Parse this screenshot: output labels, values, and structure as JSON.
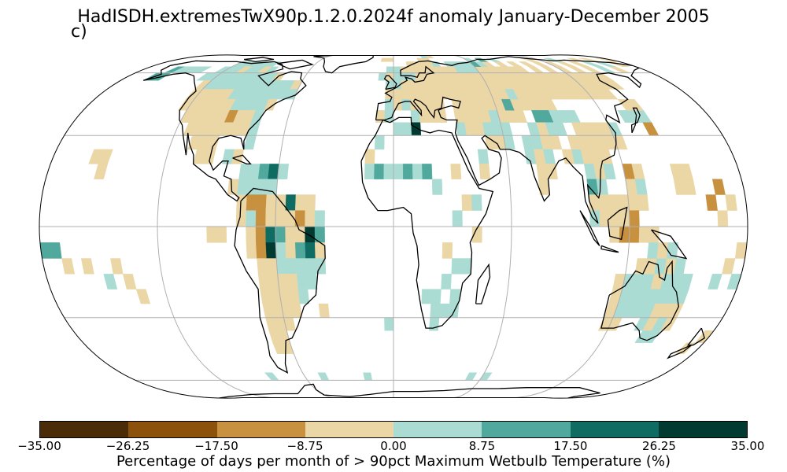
{
  "title": "HadISDH.extremesTwX90p.1.2.0.2024f anomaly January-December 2005",
  "panel_label": "c)",
  "projection": "Robinson",
  "colors": {
    "ocean": "#ffffff",
    "coastline": "#000000",
    "gridline": "#b0b0b0",
    "outline": "#000000"
  },
  "colorbar": {
    "label": "Percentage of days per month of > 90pct Maximum Wetbulb Temperature (%)",
    "bounds": [
      -35.0,
      -26.25,
      -17.5,
      -8.75,
      0.0,
      8.75,
      17.5,
      26.25,
      35.0
    ],
    "tick_labels": [
      "−35.00",
      "−26.25",
      "−17.50",
      "−8.75",
      "0.00",
      "8.75",
      "17.50",
      "26.25",
      "35.00"
    ],
    "colors": [
      "#4a2c08",
      "#8c510a",
      "#c8913f",
      "#ebd6a5",
      "#abdcd4",
      "#51a99e",
      "#0f6c62",
      "#003a30"
    ]
  }
}
